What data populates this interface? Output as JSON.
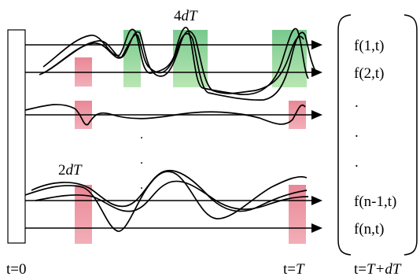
{
  "labels": {
    "top_window_prefix": "4",
    "top_window_var": "dT",
    "mid_window_prefix": "2",
    "mid_window_var": "dT",
    "t_start": "t=0",
    "t_end_prefix": "t=",
    "t_end_var": "T",
    "t_next_prefix": "t=",
    "t_next_var": "T+dT"
  },
  "vector_entries": [
    "f(1,t)",
    "f(2,t)",
    ".",
    ".",
    ".",
    "f(n-1,t)",
    "f(n,t)"
  ],
  "ellipsis_dots": [
    ".",
    ".",
    "."
  ],
  "colors": {
    "green_window": "#7fd08e",
    "red_window": "#e8808c",
    "line": "#000000"
  }
}
